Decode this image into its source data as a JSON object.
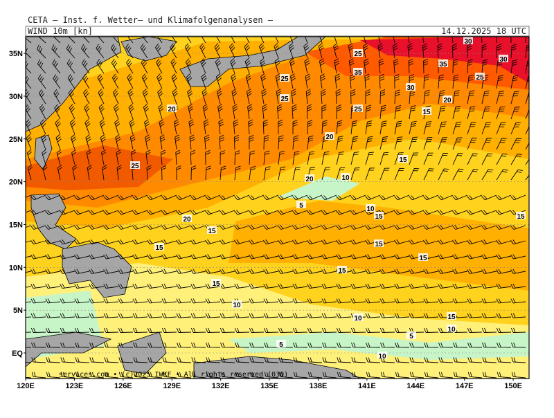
{
  "header": {
    "title": "CETA — Inst. f. Wetter— und Klimafolgenanalysen —",
    "field": "WIND 10m [kn]",
    "valid": "14.12.2025 18 UTC"
  },
  "footer": "services.com • (c)2025 IWKF • All rights reserved (030)",
  "lat_ticks": [
    {
      "value": 35,
      "label": "35N"
    },
    {
      "value": 30,
      "label": "30N"
    },
    {
      "value": 25,
      "label": "25N"
    },
    {
      "value": 20,
      "label": "20N"
    },
    {
      "value": 15,
      "label": "15N"
    },
    {
      "value": 10,
      "label": "10N"
    },
    {
      "value": 5,
      "label": "5N"
    },
    {
      "value": 0,
      "label": "EQ"
    }
  ],
  "lon_ticks": [
    {
      "value": 120,
      "label": "120E"
    },
    {
      "value": 123,
      "label": "123E"
    },
    {
      "value": 126,
      "label": "126E"
    },
    {
      "value": 129,
      "label": "129E"
    },
    {
      "value": 132,
      "label": "132E"
    },
    {
      "value": 135,
      "label": "135E"
    },
    {
      "value": 138,
      "label": "138E"
    },
    {
      "value": 141,
      "label": "141E"
    },
    {
      "value": 144,
      "label": "144E"
    },
    {
      "value": 147,
      "label": "147E"
    },
    {
      "value": 150,
      "label": "150E"
    }
  ],
  "contour_labels": [
    25,
    30,
    30,
    35,
    35,
    30,
    25,
    25,
    25,
    20,
    25,
    15,
    20,
    20,
    15,
    25,
    20,
    10,
    5,
    10,
    15,
    15,
    20,
    15,
    15,
    15,
    15,
    15,
    15,
    10,
    15,
    10,
    10,
    5,
    5,
    10
  ]
}
